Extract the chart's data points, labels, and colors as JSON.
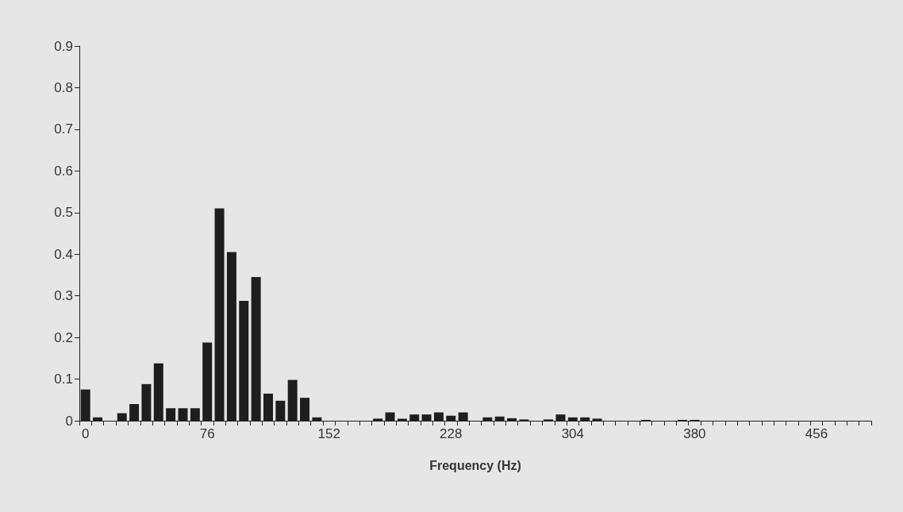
{
  "chart_data": {
    "type": "bar",
    "xlabel": "Frequency (Hz)",
    "categories": [
      "0",
      null,
      null,
      null,
      null,
      null,
      null,
      null,
      null,
      null,
      "76",
      null,
      null,
      null,
      null,
      null,
      null,
      null,
      null,
      null,
      "152",
      null,
      null,
      null,
      null,
      null,
      null,
      null,
      null,
      null,
      "228",
      null,
      null,
      null,
      null,
      null,
      null,
      null,
      null,
      null,
      "304",
      null,
      null,
      null,
      null,
      null,
      null,
      null,
      null,
      null,
      "380",
      null,
      null,
      null,
      null,
      null,
      null,
      null,
      null,
      null,
      "456",
      null,
      null,
      null,
      null
    ],
    "values": [
      0.075,
      0.008,
      0,
      0.018,
      0.04,
      0.088,
      0.138,
      0.03,
      0.03,
      0.03,
      0.188,
      0.51,
      0.405,
      0.288,
      0.345,
      0.065,
      0.048,
      0.098,
      0.055,
      0.008,
      0,
      0,
      0,
      0,
      0.005,
      0.02,
      0.005,
      0.015,
      0.015,
      0.02,
      0.012,
      0.02,
      0,
      0.008,
      0.01,
      0.006,
      0.003,
      0,
      0.003,
      0.015,
      0.008,
      0.008,
      0.005,
      0,
      0,
      0,
      0.002,
      0,
      0,
      0.002,
      0.002,
      0,
      0,
      0,
      0,
      0,
      0,
      0,
      0,
      0,
      0,
      0,
      0,
      0,
      0
    ],
    "color": "#1e1e1e",
    "ylim": [
      0,
      0.9
    ],
    "yticks": [
      0,
      0.1,
      0.2,
      0.3,
      0.4,
      0.5,
      0.6,
      0.7,
      0.8,
      0.9
    ],
    "grid": false
  }
}
